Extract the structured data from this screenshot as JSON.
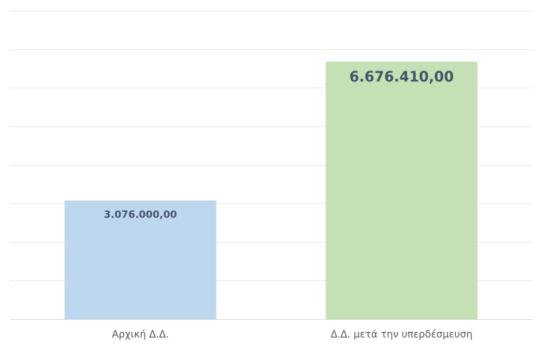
{
  "chart_data": {
    "type": "bar",
    "categories": [
      "Αρχική Δ.Δ.",
      "Δ.Δ. μετά την υπερδέσμευση"
    ],
    "values": [
      3076000,
      6676410
    ],
    "value_labels": [
      "3.076.000,00",
      "6.676.410,00"
    ],
    "colors": [
      "#bdd7ee",
      "#c5e0b4"
    ],
    "label_color": "#44546a",
    "ylim": [
      0,
      8000000
    ],
    "y_gridline_step": 1000000,
    "grid": true,
    "legend": "none"
  }
}
